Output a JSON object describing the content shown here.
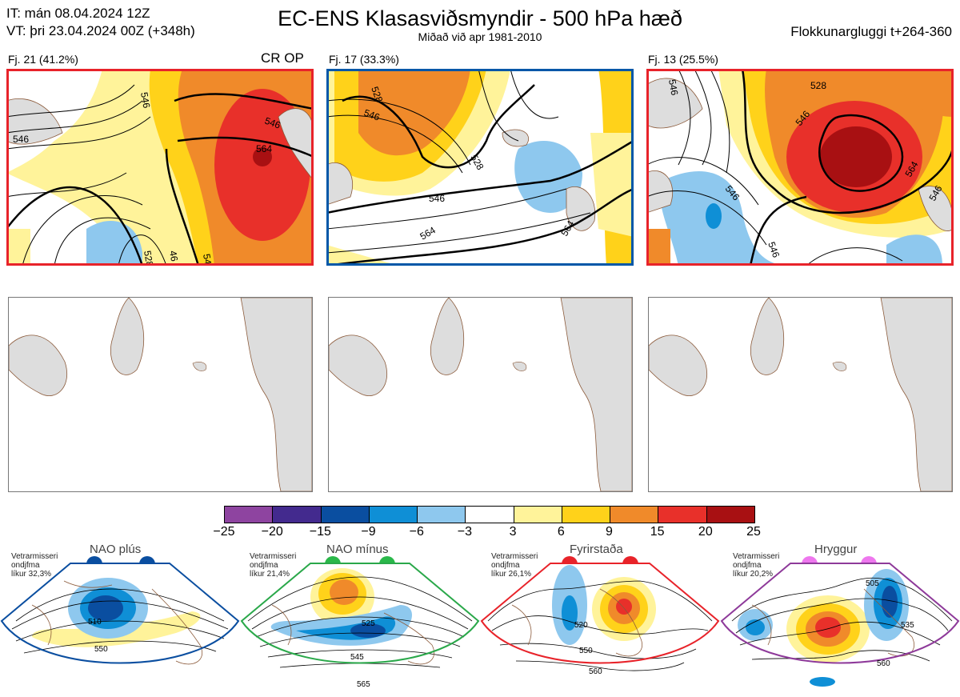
{
  "header": {
    "it_line": "IT: mán 08.04.2024 12Z",
    "vt_line": "VT: þri 23.04.2024 00Z  (+348h)",
    "title": "EC-ENS Klasasviðsmyndir - 500 hPa hæð",
    "subtitle": "Miðað við apr 1981-2010",
    "window": "Flokkunargluggi t+264-360"
  },
  "panels": [
    {
      "label": "Fj. 21 (41.2%)",
      "tag": "CR OP",
      "frame_color": "#e8232a",
      "contours": [
        "546",
        "546",
        "546",
        "564",
        "546",
        "528",
        "46",
        "54",
        "54"
      ]
    },
    {
      "label": "Fj. 17 (33.3%)",
      "tag": "",
      "frame_color": "#0057a8",
      "contours": [
        "528",
        "546",
        "528",
        "546",
        "546",
        "564",
        "564"
      ]
    },
    {
      "label": "Fj. 13 (25.5%)",
      "tag": "",
      "frame_color": "#e8232a",
      "contours": [
        "546",
        "546",
        "528",
        "546",
        "546",
        "564",
        "564",
        "546"
      ]
    }
  ],
  "colorbar": {
    "colors": [
      "#8e44a0",
      "#432a8e",
      "#0a4ea0",
      "#0f8fd6",
      "#8ec8ee",
      "#ffffff",
      "#fff39a",
      "#ffd21a",
      "#f08a2a",
      "#e8302a",
      "#a81012"
    ],
    "ticks": [
      "−25",
      "−20",
      "−15",
      "−9",
      "−6",
      "−3",
      "3",
      "6",
      "9",
      "15",
      "20",
      "25"
    ]
  },
  "regimes": [
    {
      "name": "NAO plús",
      "info_line1": "Vetrarmisseri",
      "info_line2": "ondjfma",
      "info_line3": "líkur 32,3%",
      "border": "#0a4ea0",
      "dot": "#0a4ea0",
      "contours": [
        "510",
        "550"
      ]
    },
    {
      "name": "NAO mínus",
      "info_line1": "Vetrarmisseri",
      "info_line2": "ondjfma",
      "info_line3": "líkur 21,4%",
      "border": "#2aa84a",
      "dot": "#2ab84a",
      "contours": [
        "525",
        "545",
        "565"
      ]
    },
    {
      "name": "Fyrirstaða",
      "info_line1": "Vetrarmisseri",
      "info_line2": "ondjfma",
      "info_line3": "líkur 26,1%",
      "border": "#e8232a",
      "dot": "#e8232a",
      "contours": [
        "520",
        "550",
        "560"
      ]
    },
    {
      "name": "Hryggur",
      "info_line1": "Vetrarmisseri",
      "info_line2": "ondjfma",
      "info_line3": "líkur 20,2%",
      "border": "#8e3a9a",
      "dot": "#ee77ee",
      "contours": [
        "505",
        "535",
        "560"
      ]
    }
  ]
}
